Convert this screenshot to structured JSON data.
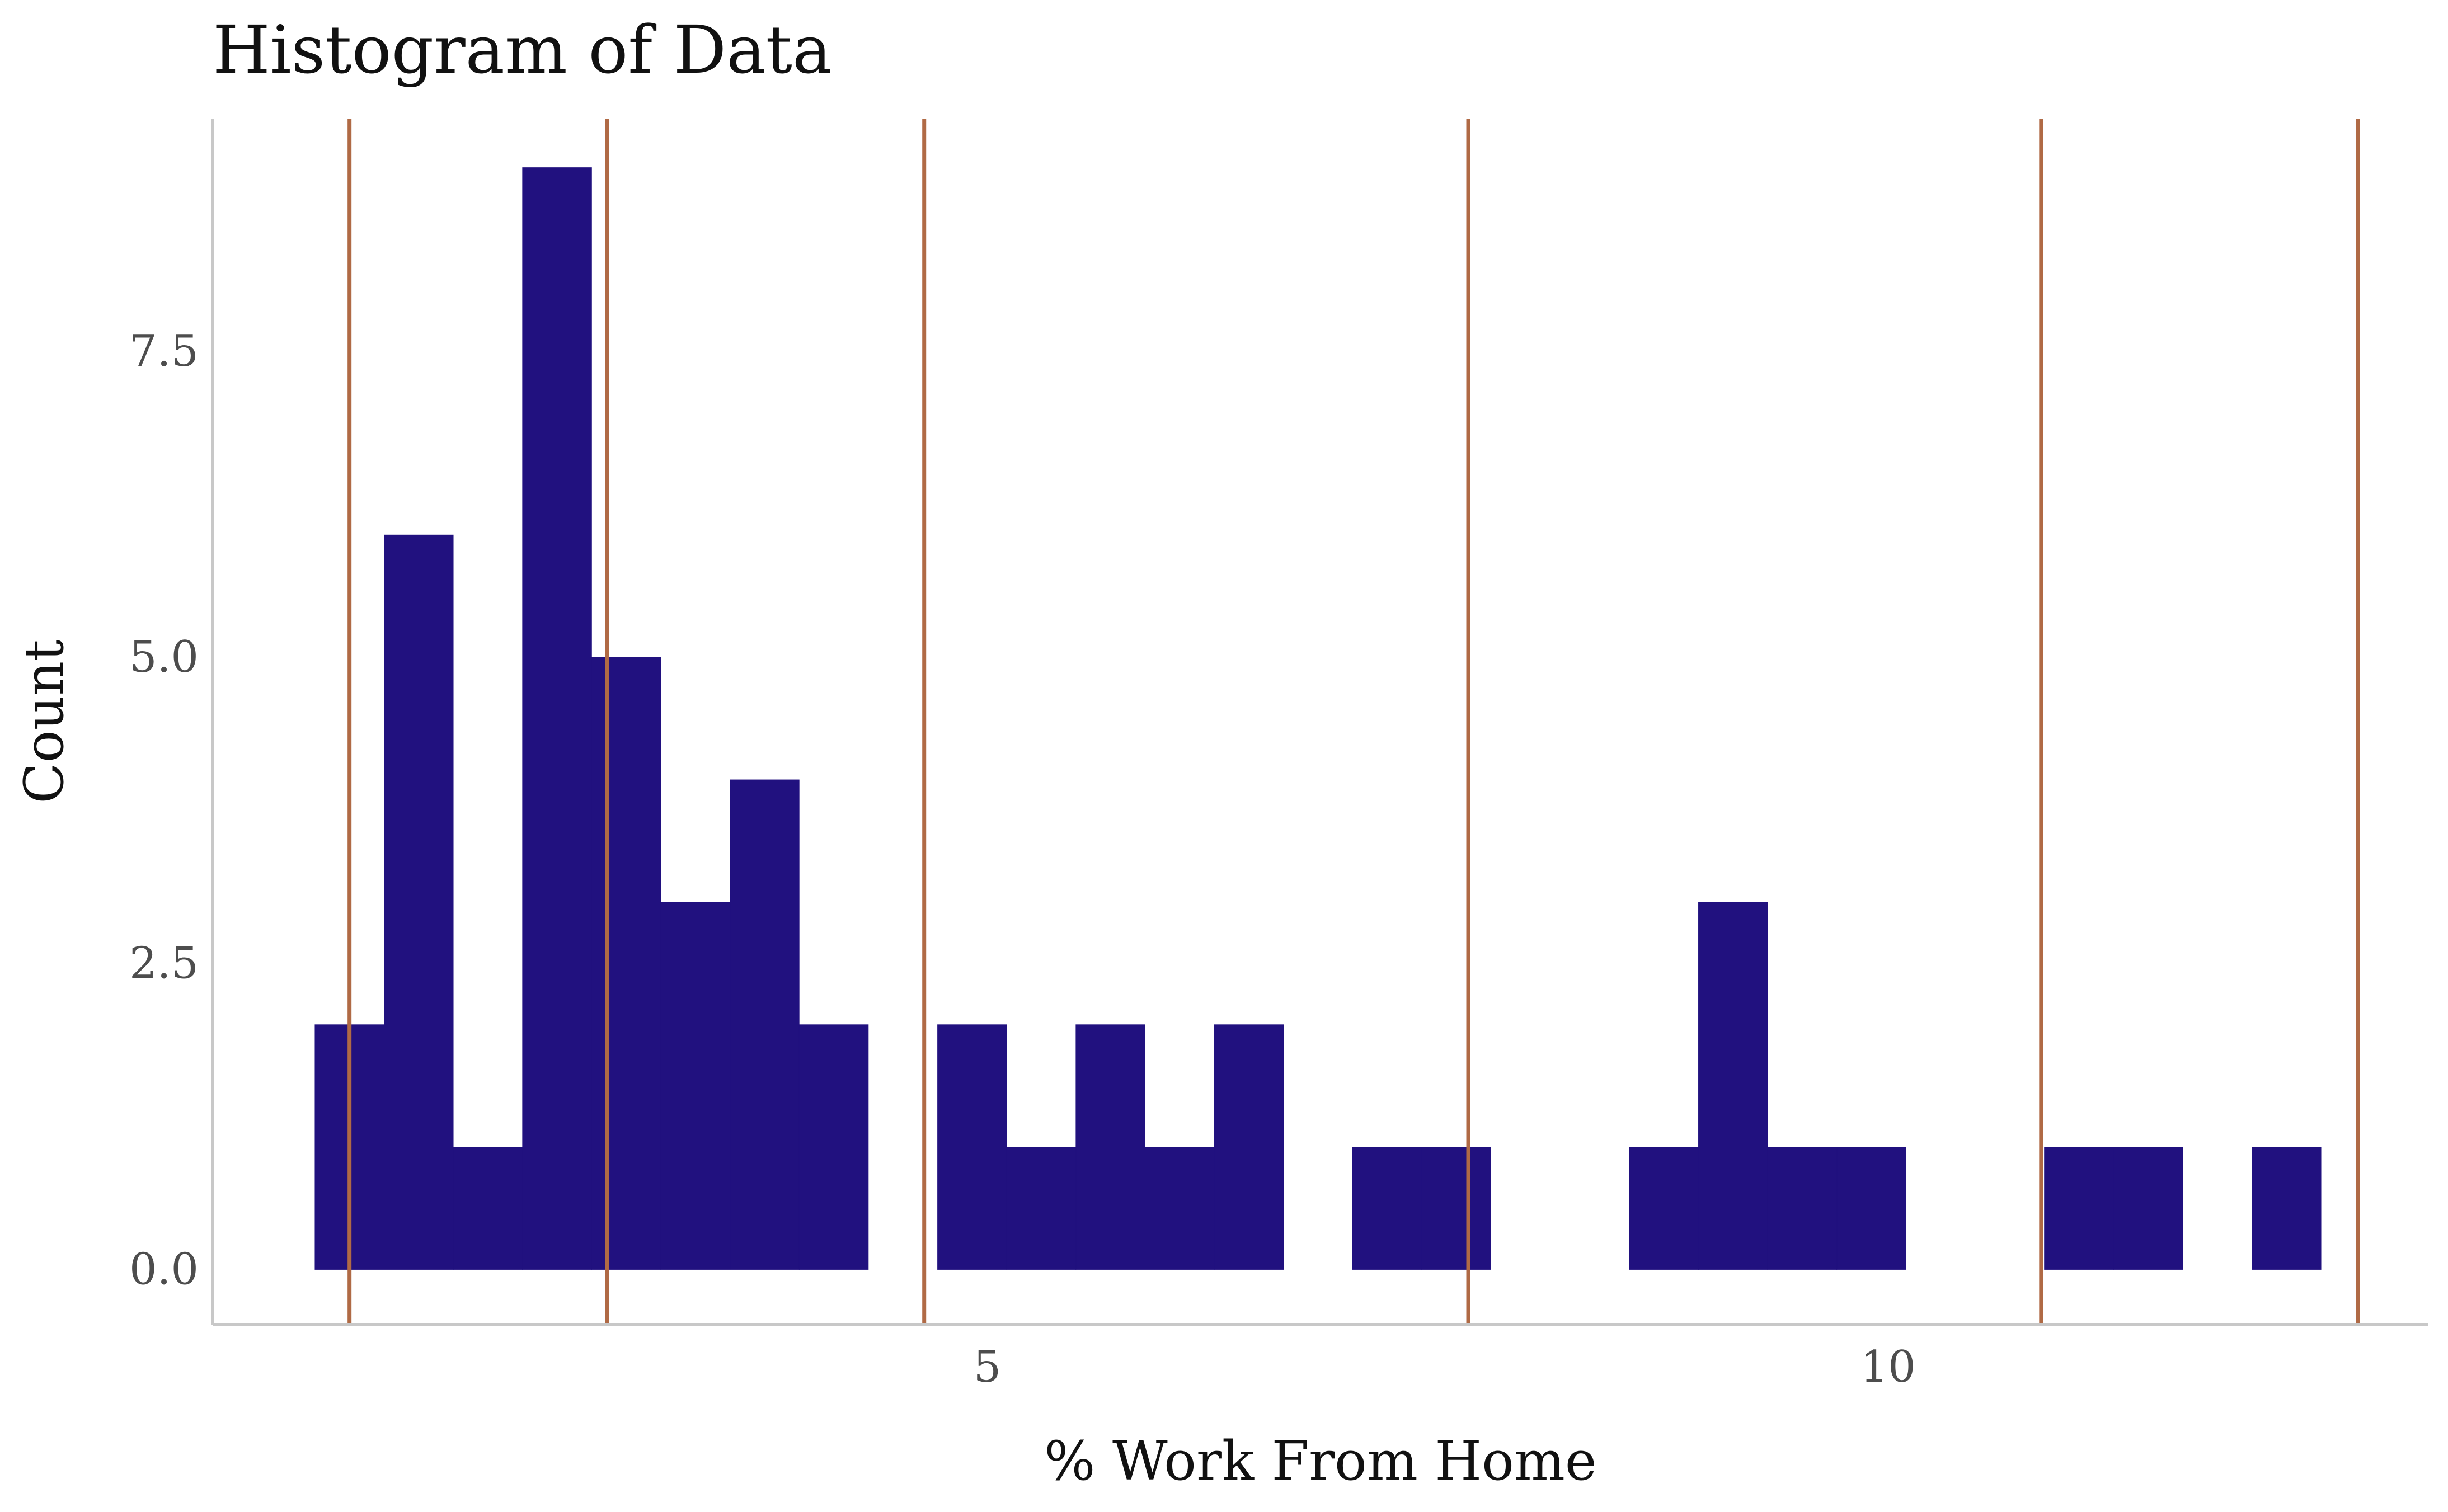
{
  "chart_data": {
    "type": "bar",
    "title": "Histogram of Data",
    "xlabel": "% Work From Home",
    "ylabel": "Count",
    "xlim": [
      0.7,
      13.0
    ],
    "ylim": [
      -0.45,
      9.4
    ],
    "x_ticks": [
      5,
      10
    ],
    "x_tick_labels": [
      "5",
      "10"
    ],
    "y_ticks": [
      0,
      2.5,
      5,
      7.5
    ],
    "y_tick_labels": [
      "0.0",
      "2.5",
      "5.0",
      "7.5"
    ],
    "grid": false,
    "bar_color": "#21117f",
    "vline_color": "#b06a45",
    "bins": [
      {
        "x0": 1.268,
        "x1": 1.652,
        "count": 2
      },
      {
        "x0": 1.652,
        "x1": 2.036,
        "count": 6
      },
      {
        "x0": 2.036,
        "x1": 2.42,
        "count": 1
      },
      {
        "x0": 2.42,
        "x1": 2.804,
        "count": 9
      },
      {
        "x0": 2.804,
        "x1": 3.188,
        "count": 5
      },
      {
        "x0": 3.188,
        "x1": 3.572,
        "count": 3
      },
      {
        "x0": 3.572,
        "x1": 3.956,
        "count": 4
      },
      {
        "x0": 3.956,
        "x1": 4.34,
        "count": 2
      },
      {
        "x0": 4.34,
        "x1": 4.724,
        "count": 0
      },
      {
        "x0": 4.724,
        "x1": 5.108,
        "count": 2
      },
      {
        "x0": 5.108,
        "x1": 5.492,
        "count": 1
      },
      {
        "x0": 5.492,
        "x1": 5.876,
        "count": 2
      },
      {
        "x0": 5.876,
        "x1": 6.26,
        "count": 1
      },
      {
        "x0": 6.26,
        "x1": 6.644,
        "count": 2
      },
      {
        "x0": 6.644,
        "x1": 7.028,
        "count": 0
      },
      {
        "x0": 7.028,
        "x1": 7.412,
        "count": 1
      },
      {
        "x0": 7.412,
        "x1": 7.796,
        "count": 1
      },
      {
        "x0": 7.796,
        "x1": 8.18,
        "count": 0
      },
      {
        "x0": 8.18,
        "x1": 8.564,
        "count": 0
      },
      {
        "x0": 8.564,
        "x1": 8.948,
        "count": 1
      },
      {
        "x0": 8.948,
        "x1": 9.332,
        "count": 3
      },
      {
        "x0": 9.332,
        "x1": 9.716,
        "count": 1
      },
      {
        "x0": 9.716,
        "x1": 10.1,
        "count": 1
      },
      {
        "x0": 10.1,
        "x1": 10.484,
        "count": 0
      },
      {
        "x0": 10.484,
        "x1": 10.868,
        "count": 0
      },
      {
        "x0": 10.868,
        "x1": 11.252,
        "count": 1
      },
      {
        "x0": 11.252,
        "x1": 11.636,
        "count": 1
      },
      {
        "x0": 11.636,
        "x1": 12.02,
        "count": 0
      },
      {
        "x0": 12.02,
        "x1": 12.404,
        "count": 1
      }
    ],
    "vertical_lines": [
      1.46,
      2.89,
      4.65,
      7.67,
      10.85,
      12.61
    ]
  }
}
